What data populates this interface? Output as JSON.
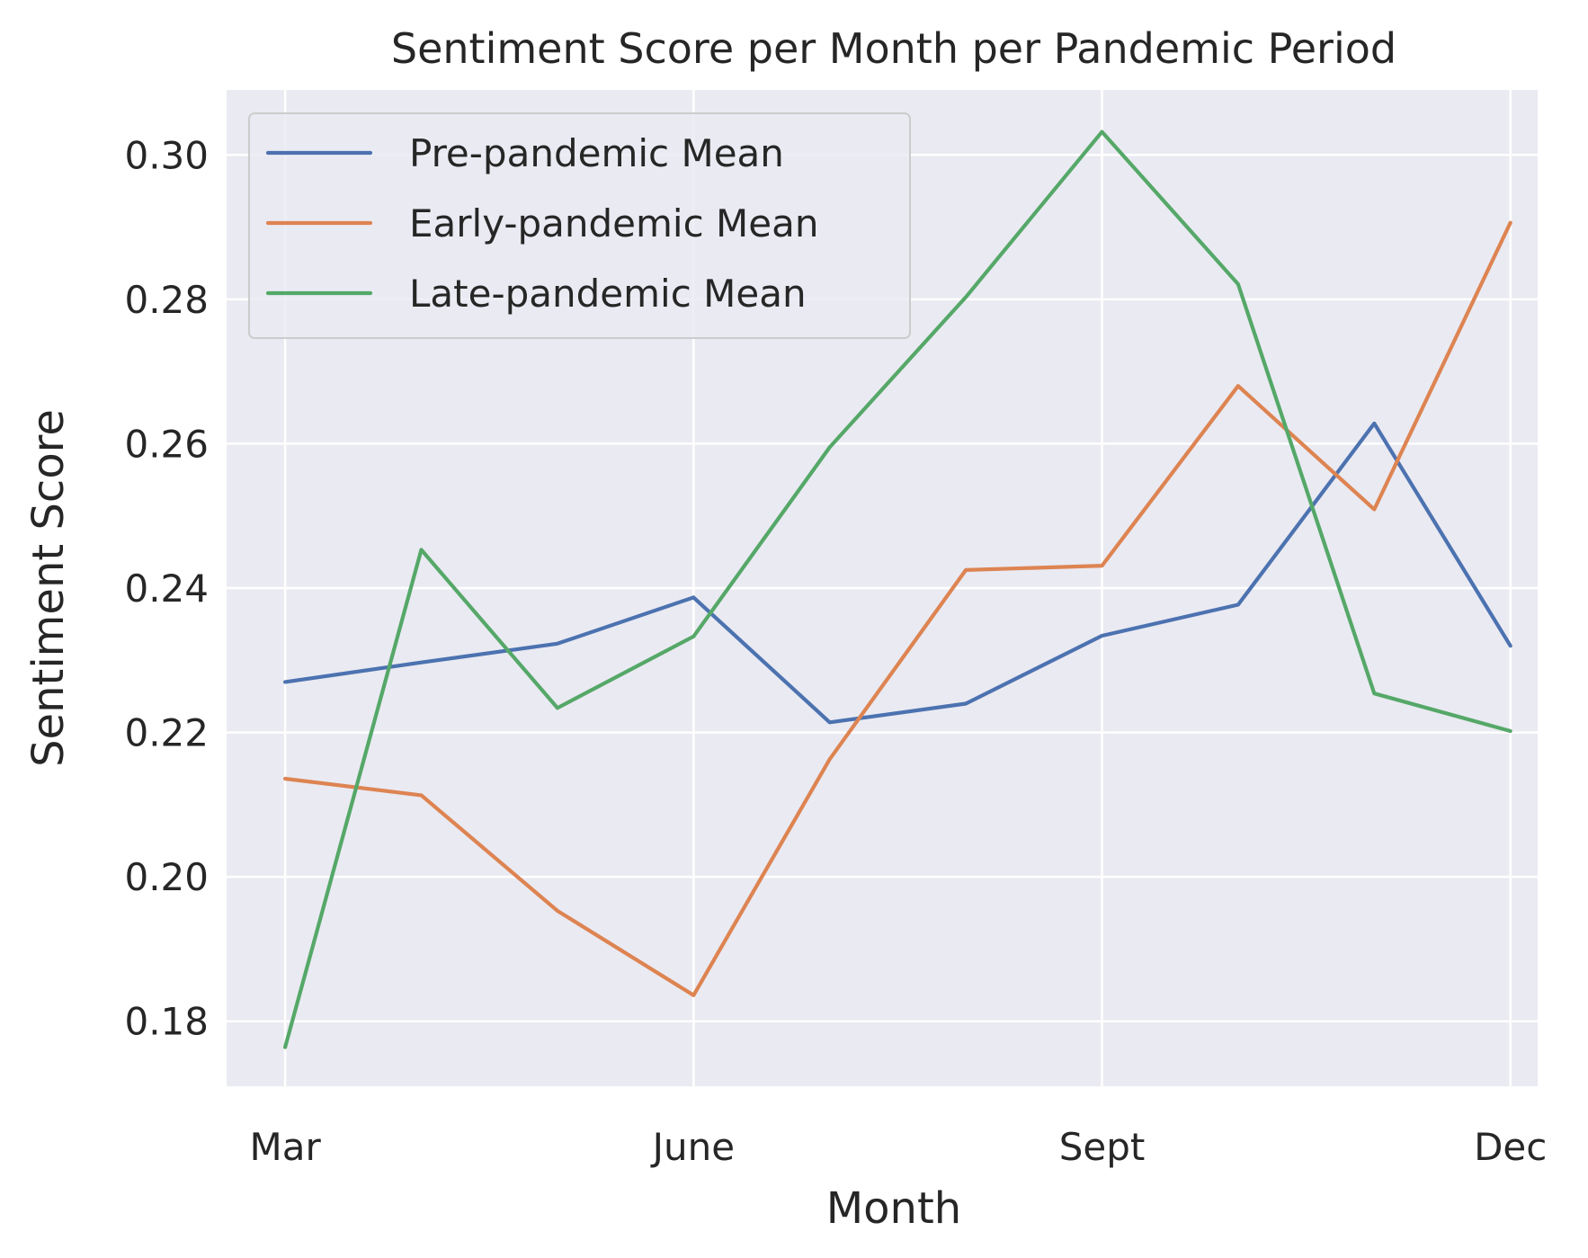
{
  "chart_data": {
    "type": "line",
    "title": "Sentiment Score per Month per Pandemic Period",
    "xlabel": "Month",
    "ylabel": "Sentiment Score",
    "x": [
      1,
      2,
      3,
      4,
      5,
      6,
      7,
      8,
      9,
      10
    ],
    "x_range": [
      0.57,
      10.2
    ],
    "xticks": [
      {
        "x": 1,
        "label": "Mar"
      },
      {
        "x": 4,
        "label": "June"
      },
      {
        "x": 7,
        "label": "Sept"
      },
      {
        "x": 10,
        "label": "Dec"
      }
    ],
    "ylim": [
      0.171,
      0.309
    ],
    "yticks": [
      0.18,
      0.2,
      0.22,
      0.24,
      0.26,
      0.28,
      0.3
    ],
    "ytick_labels": [
      "0.18",
      "0.20",
      "0.22",
      "0.24",
      "0.26",
      "0.28",
      "0.30"
    ],
    "grid": true,
    "legend_position": "top-left",
    "background": "#eaeaf2",
    "series": [
      {
        "name": "Pre-pandemic Mean",
        "color": "#4c72b0",
        "values": [
          0.227,
          0.2297,
          0.2323,
          0.2387,
          0.2214,
          0.224,
          0.2334,
          0.2377,
          0.2628,
          0.232
        ]
      },
      {
        "name": "Early-pandemic Mean",
        "color": "#dd8452",
        "values": [
          0.2136,
          0.2113,
          0.1953,
          0.1836,
          0.2163,
          0.2425,
          0.2431,
          0.268,
          0.2509,
          0.2906
        ]
      },
      {
        "name": "Late-pandemic Mean",
        "color": "#55a868",
        "values": [
          0.1764,
          0.2453,
          0.2234,
          0.2333,
          0.2595,
          0.2803,
          0.3032,
          0.2821,
          0.2254,
          0.2202
        ]
      }
    ]
  }
}
